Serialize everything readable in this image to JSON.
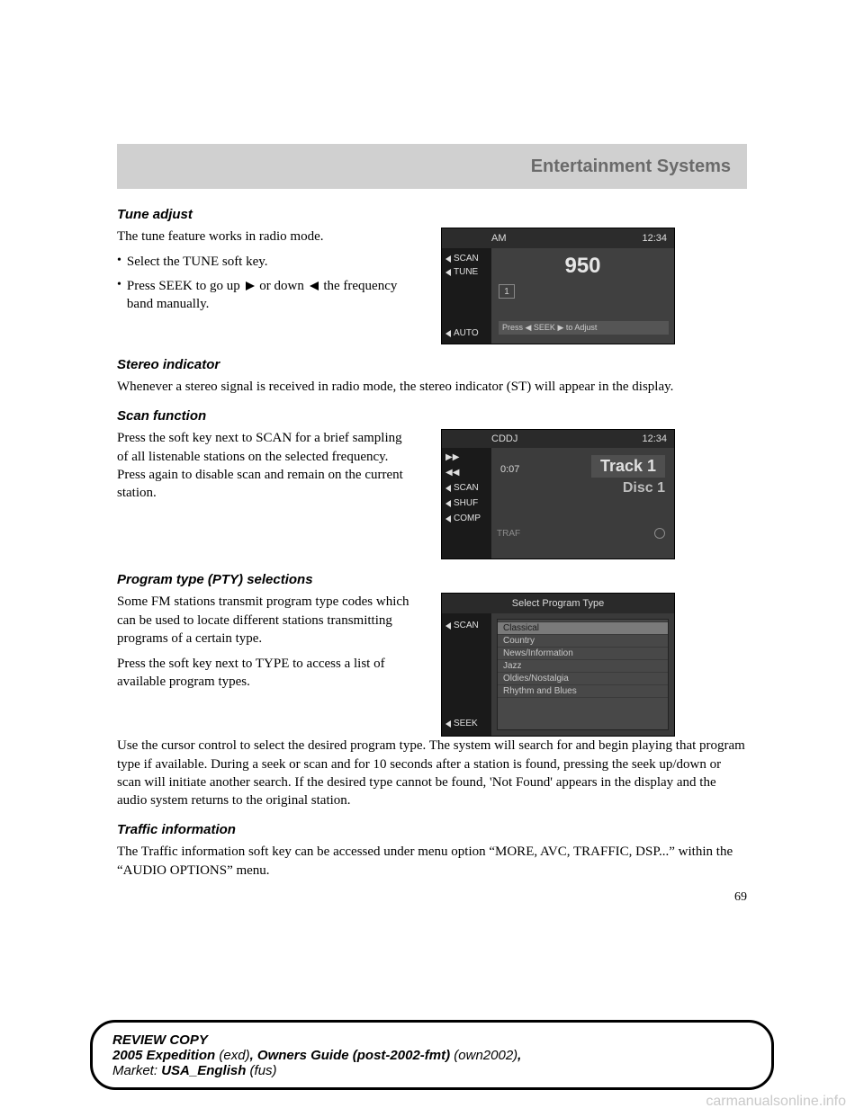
{
  "banner": {
    "title": "Entertainment Systems"
  },
  "sections": {
    "tune": {
      "heading": "Tune adjust",
      "intro": "The tune feature works in radio mode.",
      "bullet1": "Select the TUNE soft key.",
      "bullet2a": "Press SEEK to go up ",
      "bullet2b": " or down ",
      "bullet2c": " the frequency band manually."
    },
    "stereo": {
      "heading": "Stereo indicator",
      "body": "Whenever a stereo signal is received in radio mode, the stereo indicator (ST) will appear in the display."
    },
    "scan": {
      "heading": "Scan function",
      "body": "Press the soft key next to SCAN for a brief sampling of all listenable stations on the selected frequency. Press again to disable scan and remain on the current station."
    },
    "pty": {
      "heading": "Program type (PTY) selections",
      "p1": "Some FM stations transmit program type codes which can be used to locate different stations transmitting programs of a certain type.",
      "p2": "Press the soft key next to TYPE to access a list of available program types.",
      "p3": "Use the cursor control to select the desired program type. The system will search for and begin playing that program type if available. During a seek or scan and for 10 seconds after a station is found, pressing the seek up/down or scan will initiate another search. If the desired type cannot be found, 'Not Found' appears in the display and the audio system returns to the original station."
    },
    "traffic": {
      "heading": "Traffic information",
      "body": "The Traffic information soft key can be accessed under menu option “MORE, AVC, TRAFFIC, DSP...” within the “AUDIO OPTIONS” menu."
    }
  },
  "fig1": {
    "band": "AM",
    "clock": "12:34",
    "freq": "950",
    "keys": {
      "scan": "SCAN",
      "tune": "TUNE",
      "auto": "AUTO"
    },
    "preset": "1",
    "hint": "Press ◀ SEEK ▶ to Adjust"
  },
  "fig2": {
    "mode": "CDDJ",
    "clock": "12:34",
    "keys": {
      "ff": "▶▶",
      "rw": "◀◀",
      "scan": "SCAN",
      "shuf": "SHUF",
      "comp": "COMP"
    },
    "time": "0:07",
    "track": "Track 1",
    "disc": "Disc 1",
    "traf": "TRAF"
  },
  "fig3": {
    "title": "Select Program Type",
    "keys": {
      "scan": "SCAN",
      "seek": "SEEK"
    },
    "items": [
      "",
      "Classical",
      "Country",
      "News/Information",
      "Jazz",
      "Oldies/Nostalgia",
      "Rhythm and Blues"
    ],
    "selected_index": 1
  },
  "page_number": "69",
  "footer": {
    "line1": "REVIEW COPY",
    "vehicle_bold": "2005 Expedition",
    "vehicle_code": " (exd)",
    "guide_bold": "Owners Guide (post-2002-fmt)",
    "guide_code": " (own2002)",
    "market_label": "Market: ",
    "market_bold": "USA_English",
    "market_code": " (fus)"
  },
  "watermark": "carmanualsonline.info",
  "colors": {
    "banner_bg": "#d0d0d0",
    "banner_text": "#6a6a6a",
    "screen_bg": "#3c3c3c",
    "screen_dark": "#1a1a1a",
    "screen_text": "#e0e0e0",
    "watermark": "#c9c9c9"
  }
}
